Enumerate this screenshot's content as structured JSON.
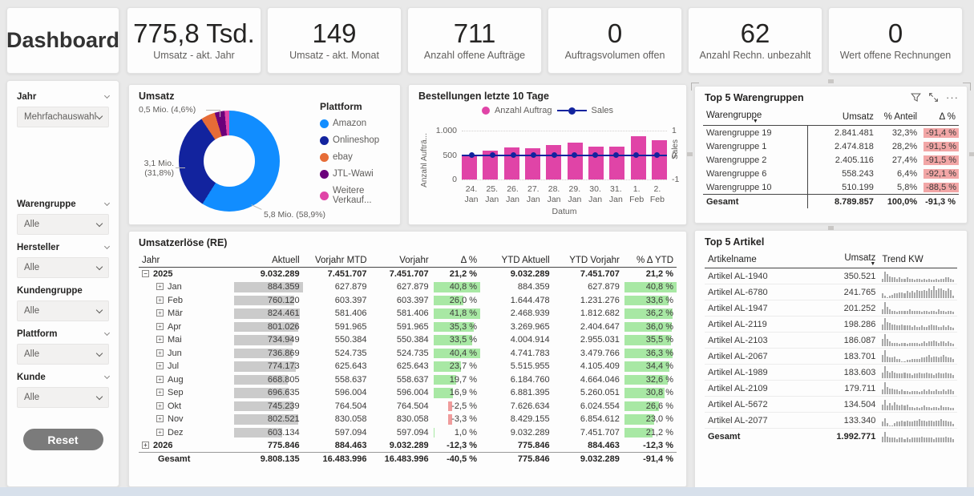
{
  "colors": {
    "accent_pink": "#E044A7",
    "navy": "#12239E",
    "blue": "#118DFF",
    "orange": "#E66C37",
    "purple": "#6B007B",
    "green_bar": "#a8e8a4",
    "red_chip": "#F2A6A6",
    "gray_bar": "#cbcbcb",
    "page_bg": "#e9e9e9",
    "strip": "#d7e0eb"
  },
  "top_row": {
    "title": "Dashboard",
    "kpis": [
      {
        "value": "775,8 Tsd.",
        "label": "Umsatz - akt. Jahr"
      },
      {
        "value": "149",
        "label": "Umsatz - akt. Monat"
      },
      {
        "value": "711",
        "label": "Anzahl offene Aufträge"
      },
      {
        "value": "0",
        "label": "Auftragsvolumen offen"
      },
      {
        "value": "62",
        "label": "Anzahl Rechn. unbezahlt"
      },
      {
        "value": "0",
        "label": "Wert offene Rechnungen"
      }
    ]
  },
  "sidebar": {
    "filters": [
      {
        "id": "jahr",
        "label": "Jahr",
        "value": "Mehrfachauswahl",
        "chevron": true,
        "gap_after": true
      },
      {
        "id": "warengruppe",
        "label": "Warengruppe",
        "value": "Alle",
        "chevron": true,
        "gap_after": false
      },
      {
        "id": "hersteller",
        "label": "Hersteller",
        "value": "Alle",
        "chevron": true,
        "gap_after": false
      },
      {
        "id": "kundengruppe",
        "label": "Kundengruppe",
        "value": "Alle",
        "chevron": false,
        "gap_after": false
      },
      {
        "id": "plattform",
        "label": "Plattform",
        "value": "Alle",
        "chevron": true,
        "gap_after": false
      },
      {
        "id": "kunde",
        "label": "Kunde",
        "value": "Alle",
        "chevron": true,
        "gap_after": false
      }
    ],
    "reset_label": "Reset"
  },
  "umsatz_panel": {
    "title": "Umsatz",
    "legend_title": "Plattform",
    "slices": [
      {
        "name": "Amazon",
        "color": "#118DFF",
        "pct": 58.9,
        "callout": "5,8 Mio. (58,9%)"
      },
      {
        "name": "Onlineshop",
        "color": "#12239E",
        "pct": 31.8,
        "callout": "3,1 Mio. (31,8%)"
      },
      {
        "name": "ebay",
        "color": "#E66C37",
        "pct": 4.6,
        "callout": "0,5 Mio. (4,6%)"
      },
      {
        "name": "JTL-Wawi",
        "color": "#6B007B",
        "pct": 3.2,
        "callout": null
      },
      {
        "name": "Weitere Verkauf...",
        "color": "#E044A7",
        "pct": 1.5,
        "callout": null
      }
    ],
    "callout_top": "0,5 Mio. (4,6%)",
    "callout_left_1": "3,1 Mio.",
    "callout_left_2": "(31,8%)",
    "callout_bottom": "5,8 Mio. (58,9%)"
  },
  "bestellungen_panel": {
    "title": "Bestellungen letzte 10 Tage",
    "legend": [
      {
        "label": "Anzahl Auftrag"
      },
      {
        "label": "Sales"
      }
    ],
    "y_left": {
      "title": "Anzahl Aufträ...",
      "ticks": [
        "1.000",
        "500",
        "0"
      ]
    },
    "y_right": {
      "title": "Sales",
      "ticks": [
        "1",
        "0",
        "-1"
      ]
    },
    "x_title": "Datum",
    "categories": [
      [
        "24.",
        "Jan"
      ],
      [
        "25.",
        "Jan"
      ],
      [
        "26.",
        "Jan"
      ],
      [
        "27.",
        "Jan"
      ],
      [
        "28.",
        "Jan"
      ],
      [
        "29.",
        "Jan"
      ],
      [
        "30.",
        "Jan"
      ],
      [
        "31.",
        "Jan"
      ],
      [
        "1.",
        "Feb"
      ],
      [
        "2.",
        "Feb"
      ]
    ],
    "values": [
      510,
      590,
      660,
      645,
      700,
      760,
      670,
      680,
      890,
      800
    ],
    "sales": [
      0,
      0,
      0,
      0,
      0,
      0,
      0,
      0,
      0,
      0
    ],
    "y_max": 1000
  },
  "top5_warengruppen": {
    "title": "Top 5 Warengruppen",
    "columns": [
      "Warengruppe",
      "Umsatz",
      "% Anteil",
      "Δ %"
    ],
    "rows": [
      {
        "name": "Warengruppe 19",
        "umsatz": "2.841.481",
        "anteil": "32,3%",
        "delta": "-91,4 %"
      },
      {
        "name": "Warengruppe 1",
        "umsatz": "2.474.818",
        "anteil": "28,2%",
        "delta": "-91,5 %"
      },
      {
        "name": "Warengruppe 2",
        "umsatz": "2.405.116",
        "anteil": "27,4%",
        "delta": "-91,5 %"
      },
      {
        "name": "Warengruppe 6",
        "umsatz": "558.243",
        "anteil": "6,4%",
        "delta": "-92,1 %"
      },
      {
        "name": "Warengruppe 10",
        "umsatz": "510.199",
        "anteil": "5,8%",
        "delta": "-88,5 %"
      }
    ],
    "total": {
      "name": "Gesamt",
      "umsatz": "8.789.857",
      "anteil": "100,0%",
      "delta": "-91,3 %"
    }
  },
  "umsatzerloese": {
    "title": "Umsatzerlöse (RE)",
    "columns": [
      "Jahr",
      "Aktuell",
      "Vorjahr MTD",
      "Vorjahr",
      "Δ %",
      "YTD Aktuell",
      "YTD Vorjahr",
      "% Δ YTD"
    ],
    "rows": [
      {
        "type": "year",
        "icon": "minus",
        "label": "2025",
        "aktuell": {
          "text": "9.032.289"
        },
        "vmtd": "7.451.707",
        "vorjahr": "7.451.707",
        "delta": {
          "text": "21,2 %"
        },
        "ytda": "9.032.289",
        "ytdv": "7.451.707",
        "ytdd": {
          "text": "21,2 %"
        }
      },
      {
        "type": "month",
        "icon": "plus",
        "label": "Jan",
        "aktuell": {
          "text": "884.359",
          "bar": 1.0
        },
        "vmtd": "627.879",
        "vorjahr": "627.879",
        "delta": {
          "text": "40,8 %",
          "bar": 0.98
        },
        "ytda": "884.359",
        "ytdv": "627.879",
        "ytdd": {
          "text": "40,8 %",
          "bar": 1.0
        }
      },
      {
        "type": "month",
        "icon": "plus",
        "label": "Feb",
        "aktuell": {
          "text": "760.120",
          "bar": 0.86
        },
        "vmtd": "603.397",
        "vorjahr": "603.397",
        "delta": {
          "text": "26,0 %",
          "bar": 0.62
        },
        "ytda": "1.644.478",
        "ytdv": "1.231.276",
        "ytdd": {
          "text": "33,6 %",
          "bar": 0.82
        }
      },
      {
        "type": "month",
        "icon": "plus",
        "label": "Mär",
        "aktuell": {
          "text": "824.461",
          "bar": 0.93
        },
        "vmtd": "581.406",
        "vorjahr": "581.406",
        "delta": {
          "text": "41,8 %",
          "bar": 1.0
        },
        "ytda": "2.468.939",
        "ytdv": "1.812.682",
        "ytdd": {
          "text": "36,2 %",
          "bar": 0.89
        }
      },
      {
        "type": "month",
        "icon": "plus",
        "label": "Apr",
        "aktuell": {
          "text": "801.026",
          "bar": 0.91
        },
        "vmtd": "591.965",
        "vorjahr": "591.965",
        "delta": {
          "text": "35,3 %",
          "bar": 0.84
        },
        "ytda": "3.269.965",
        "ytdv": "2.404.647",
        "ytdd": {
          "text": "36,0 %",
          "bar": 0.88
        }
      },
      {
        "type": "month",
        "icon": "plus",
        "label": "Mai",
        "aktuell": {
          "text": "734.949",
          "bar": 0.83
        },
        "vmtd": "550.384",
        "vorjahr": "550.384",
        "delta": {
          "text": "33,5 %",
          "bar": 0.8
        },
        "ytda": "4.004.914",
        "ytdv": "2.955.031",
        "ytdd": {
          "text": "35,5 %",
          "bar": 0.87
        }
      },
      {
        "type": "month",
        "icon": "plus",
        "label": "Jun",
        "aktuell": {
          "text": "736.869",
          "bar": 0.83
        },
        "vmtd": "524.735",
        "vorjahr": "524.735",
        "delta": {
          "text": "40,4 %",
          "bar": 0.97
        },
        "ytda": "4.741.783",
        "ytdv": "3.479.766",
        "ytdd": {
          "text": "36,3 %",
          "bar": 0.89
        }
      },
      {
        "type": "month",
        "icon": "plus",
        "label": "Jul",
        "aktuell": {
          "text": "774.173",
          "bar": 0.88
        },
        "vmtd": "625.643",
        "vorjahr": "625.643",
        "delta": {
          "text": "23,7 %",
          "bar": 0.57
        },
        "ytda": "5.515.955",
        "ytdv": "4.105.409",
        "ytdd": {
          "text": "34,4 %",
          "bar": 0.84
        }
      },
      {
        "type": "month",
        "icon": "plus",
        "label": "Aug",
        "aktuell": {
          "text": "668.805",
          "bar": 0.76
        },
        "vmtd": "558.637",
        "vorjahr": "558.637",
        "delta": {
          "text": "19,7 %",
          "bar": 0.47
        },
        "ytda": "6.184.760",
        "ytdv": "4.664.046",
        "ytdd": {
          "text": "32,6 %",
          "bar": 0.8
        }
      },
      {
        "type": "month",
        "icon": "plus",
        "label": "Sep",
        "aktuell": {
          "text": "696.635",
          "bar": 0.79
        },
        "vmtd": "596.004",
        "vorjahr": "596.004",
        "delta": {
          "text": "16,9 %",
          "bar": 0.4
        },
        "ytda": "6.881.395",
        "ytdv": "5.260.051",
        "ytdd": {
          "text": "30,8 %",
          "bar": 0.75
        }
      },
      {
        "type": "month",
        "icon": "plus",
        "label": "Okt",
        "aktuell": {
          "text": "745.239",
          "bar": 0.84
        },
        "vmtd": "764.504",
        "vorjahr": "764.504",
        "delta": {
          "text": "-2,5 %",
          "bar": 0.07,
          "neg": true
        },
        "ytda": "7.626.634",
        "ytdv": "6.024.554",
        "ytdd": {
          "text": "26,6 %",
          "bar": 0.65
        }
      },
      {
        "type": "month",
        "icon": "plus",
        "label": "Nov",
        "aktuell": {
          "text": "802.521",
          "bar": 0.91
        },
        "vmtd": "830.058",
        "vorjahr": "830.058",
        "delta": {
          "text": "-3,3 %",
          "bar": 0.09,
          "neg": true
        },
        "ytda": "8.429.155",
        "ytdv": "6.854.612",
        "ytdd": {
          "text": "23,0 %",
          "bar": 0.56
        }
      },
      {
        "type": "month",
        "icon": "plus",
        "label": "Dez",
        "aktuell": {
          "text": "603.134",
          "bar": 0.68
        },
        "vmtd": "597.094",
        "vorjahr": "597.094",
        "delta": {
          "text": "1,0 %",
          "bar": 0.03
        },
        "ytda": "9.032.289",
        "ytdv": "7.451.707",
        "ytdd": {
          "text": "21,2 %",
          "bar": 0.52
        }
      },
      {
        "type": "year",
        "icon": "plus",
        "label": "2026",
        "aktuell": {
          "text": "775.846"
        },
        "vmtd": "884.463",
        "vorjahr": "9.032.289",
        "delta": {
          "text": "-12,3 %"
        },
        "ytda": "775.846",
        "ytdv": "884.463",
        "ytdd": {
          "text": "-12,3 %"
        }
      },
      {
        "type": "total",
        "icon": null,
        "label": "Gesamt",
        "aktuell": {
          "text": "9.808.135"
        },
        "vmtd": "16.483.996",
        "vorjahr": "16.483.996",
        "delta": {
          "text": "-40,5 %"
        },
        "ytda": "775.846",
        "ytdv": "9.032.289",
        "ytdd": {
          "text": "-91,4 %"
        }
      }
    ]
  },
  "top5_artikel": {
    "title": "Top 5 Artikel",
    "columns": [
      "Artikelname",
      "Umsatz",
      "Trend KW"
    ],
    "rows": [
      {
        "name": "Artikel AL-1940",
        "umsatz": "350.521",
        "trend": [
          3,
          9,
          7,
          5,
          4,
          4,
          3,
          4,
          3,
          3,
          4,
          3,
          3,
          2,
          3,
          3,
          2,
          3,
          2,
          3,
          2,
          2,
          3,
          2,
          3,
          3,
          4,
          4,
          3,
          2
        ]
      },
      {
        "name": "Artikel AL-6780",
        "umsatz": "241.765",
        "trend": [
          4,
          2,
          1,
          2,
          3,
          4,
          4,
          5,
          5,
          4,
          6,
          5,
          6,
          5,
          7,
          6,
          6,
          7,
          6,
          8,
          7,
          10,
          7,
          8,
          8,
          7,
          6,
          8,
          7,
          2
        ]
      },
      {
        "name": "Artikel AL-1947",
        "umsatz": "201.252",
        "trend": [
          4,
          10,
          6,
          4,
          3,
          3,
          2,
          3,
          3,
          3,
          3,
          4,
          3,
          3,
          3,
          3,
          2,
          3,
          3,
          2,
          3,
          3,
          2,
          4,
          3,
          3,
          2,
          3,
          3,
          2
        ]
      },
      {
        "name": "Artikel AL-2119",
        "umsatz": "198.286",
        "trend": [
          5,
          10,
          7,
          6,
          5,
          5,
          4,
          4,
          5,
          4,
          4,
          4,
          3,
          4,
          3,
          3,
          4,
          3,
          3,
          4,
          5,
          4,
          4,
          3,
          3,
          4,
          3,
          4,
          3,
          2
        ]
      },
      {
        "name": "Artikel AL-2103",
        "umsatz": "186.087",
        "trend": [
          6,
          10,
          6,
          4,
          3,
          3,
          3,
          2,
          3,
          3,
          2,
          3,
          3,
          3,
          3,
          2,
          3,
          4,
          3,
          4,
          4,
          5,
          4,
          3,
          4,
          4,
          3,
          4,
          3,
          2
        ]
      },
      {
        "name": "Artikel AL-2067",
        "umsatz": "183.701",
        "trend": [
          6,
          10,
          5,
          4,
          4,
          5,
          3,
          3,
          1,
          1,
          2,
          2,
          3,
          3,
          3,
          3,
          4,
          4,
          5,
          6,
          4,
          5,
          5,
          4,
          5,
          6,
          5,
          4,
          4,
          3
        ]
      },
      {
        "name": "Artikel AL-1989",
        "umsatz": "183.603",
        "trend": [
          5,
          10,
          6,
          5,
          6,
          5,
          4,
          4,
          4,
          5,
          4,
          4,
          3,
          4,
          4,
          5,
          4,
          4,
          5,
          4,
          4,
          3,
          4,
          5,
          4,
          4,
          5,
          4,
          4,
          3
        ]
      },
      {
        "name": "Artikel AL-2109",
        "umsatz": "179.711",
        "trend": [
          4,
          10,
          6,
          5,
          5,
          4,
          4,
          3,
          4,
          3,
          3,
          2,
          3,
          3,
          3,
          2,
          3,
          4,
          3,
          4,
          3,
          3,
          4,
          3,
          3,
          4,
          3,
          4,
          4,
          3
        ]
      },
      {
        "name": "Artikel AL-5672",
        "umsatz": "134.504",
        "trend": [
          5,
          9,
          4,
          6,
          4,
          7,
          5,
          4,
          5,
          4,
          5,
          3,
          3,
          2,
          3,
          2,
          3,
          4,
          3,
          3,
          2,
          3,
          3,
          2,
          4,
          3,
          3,
          3,
          2,
          2
        ]
      },
      {
        "name": "Artikel AL-2077",
        "umsatz": "133.340",
        "trend": [
          4,
          7,
          3,
          1,
          1,
          3,
          4,
          4,
          5,
          4,
          5,
          4,
          4,
          5,
          5,
          6,
          5,
          5,
          4,
          5,
          5,
          4,
          5,
          5,
          6,
          5,
          5,
          4,
          4,
          2
        ]
      }
    ],
    "total": {
      "name": "Gesamt",
      "umsatz": "1.992.771",
      "trend": [
        5,
        9,
        5,
        4,
        4,
        4,
        3,
        4,
        4,
        3,
        4,
        3,
        4,
        4,
        4,
        4,
        5,
        4,
        4,
        4,
        4,
        3,
        4,
        4,
        4,
        4,
        5,
        4,
        4,
        3
      ]
    }
  },
  "chart_data": [
    {
      "type": "pie",
      "title": "Umsatz",
      "legend_title": "Plattform",
      "categories": [
        "Amazon",
        "Onlineshop",
        "ebay",
        "JTL-Wawi",
        "Weitere Verkauf..."
      ],
      "values": [
        58.9,
        31.8,
        4.6,
        3.2,
        1.5
      ],
      "labels": [
        "5,8 Mio. (58,9%)",
        "3,1 Mio. (31,8%)",
        "0,5 Mio. (4,6%)",
        "",
        ""
      ]
    },
    {
      "type": "bar",
      "title": "Bestellungen letzte 10 Tage",
      "categories": [
        "24. Jan",
        "25. Jan",
        "26. Jan",
        "27. Jan",
        "28. Jan",
        "29. Jan",
        "30. Jan",
        "31. Jan",
        "1. Feb",
        "2. Feb"
      ],
      "series": [
        {
          "name": "Anzahl Auftrag",
          "values": [
            510,
            590,
            660,
            645,
            700,
            760,
            670,
            680,
            890,
            800
          ]
        },
        {
          "name": "Sales",
          "values": [
            0,
            0,
            0,
            0,
            0,
            0,
            0,
            0,
            0,
            0
          ]
        }
      ],
      "xlabel": "Datum",
      "ylabel": "Anzahl Aufträ...",
      "ylabel2": "Sales",
      "ylim": [
        0,
        1000
      ],
      "ylim2": [
        -1,
        1
      ],
      "legend_position": "top",
      "grid": true
    }
  ]
}
